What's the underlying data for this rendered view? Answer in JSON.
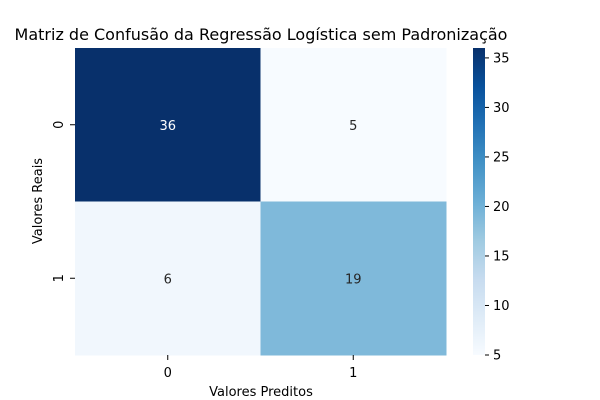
{
  "chart_data": {
    "type": "heatmap",
    "title": "Matriz de Confusão da Regressão Logística sem Padronização",
    "xlabel": "Valores Preditos",
    "ylabel": "Valores Reais",
    "x_categories": [
      "0",
      "1"
    ],
    "y_categories": [
      "0",
      "1"
    ],
    "values": [
      [
        36,
        5
      ],
      [
        6,
        19
      ]
    ],
    "colormap": "Blues",
    "color_range": [
      5,
      36
    ],
    "colorbar_ticks": [
      "5",
      "10",
      "15",
      "20",
      "25",
      "30",
      "35"
    ],
    "annotations": true,
    "grid": false
  }
}
